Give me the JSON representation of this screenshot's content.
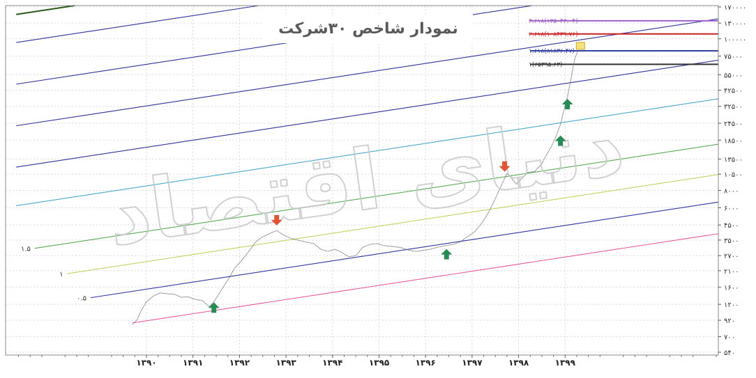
{
  "chart_data": {
    "type": "line",
    "title": "نمودار شاخص ۳۰شرکت",
    "watermark": "دنیای اقتصاد",
    "x_axis": {
      "ticks": [
        "۱۳۹۰",
        "۱۳۹۱",
        "۱۳۹۲",
        "۱۳۹۳",
        "۱۳۹۴",
        "۱۳۹۵",
        "۱۳۹۶",
        "۱۳۹۷",
        "۱۳۹۸",
        "۱۳۹۹"
      ]
    },
    "y_axis": {
      "scale": "log",
      "ticks": [
        {
          "label": "۱۷۰۰۰۰",
          "value": 170000
        },
        {
          "label": "۱۳۰۰۰۰",
          "value": 130000
        },
        {
          "label": "۱۰۰۰۰۰",
          "value": 100000
        },
        {
          "label": "۷۵۰۰۰",
          "value": 75000
        },
        {
          "label": "۵۵۰۰۰",
          "value": 55000
        },
        {
          "label": "۴۲۵۰۰",
          "value": 42500
        },
        {
          "label": "۳۲۵۰۰",
          "value": 32500
        },
        {
          "label": "۲۴۵۰۰",
          "value": 24500
        },
        {
          "label": "۱۸۵۰۰",
          "value": 18500
        },
        {
          "label": "۱۳۵۰۰",
          "value": 13500
        },
        {
          "label": "۱۰۵۰۰",
          "value": 10500
        },
        {
          "label": "۸۰۰۰",
          "value": 8000
        },
        {
          "label": "۶۰۰۰",
          "value": 6000
        },
        {
          "label": "۴۵۰۰",
          "value": 4500
        },
        {
          "label": "۳۵۰۰",
          "value": 3500
        },
        {
          "label": "۲۷۰۰",
          "value": 2700
        },
        {
          "label": "۲۱۰۰",
          "value": 2100
        },
        {
          "label": "۱۶۰۰",
          "value": 1600
        },
        {
          "label": "۱۲۰۰",
          "value": 1200
        },
        {
          "label": "۹۲۰",
          "value": 920
        },
        {
          "label": "۷۰۰",
          "value": 700
        },
        {
          "label": "۵۴۰",
          "value": 540
        }
      ]
    },
    "series": [
      {
        "color": "#6a6a6a",
        "points": [
          [
            1389.7,
            860
          ],
          [
            1389.8,
            930
          ],
          [
            1389.9,
            1100
          ],
          [
            1390.0,
            1250
          ],
          [
            1390.15,
            1380
          ],
          [
            1390.3,
            1450
          ],
          [
            1390.45,
            1430
          ],
          [
            1390.6,
            1420
          ],
          [
            1390.75,
            1350
          ],
          [
            1390.9,
            1360
          ],
          [
            1391.05,
            1300
          ],
          [
            1391.2,
            1280
          ],
          [
            1391.35,
            1150
          ],
          [
            1391.45,
            1250
          ],
          [
            1391.6,
            1500
          ],
          [
            1391.75,
            1800
          ],
          [
            1391.9,
            2200
          ],
          [
            1392.05,
            2500
          ],
          [
            1392.2,
            2900
          ],
          [
            1392.35,
            3400
          ],
          [
            1392.5,
            3700
          ],
          [
            1392.65,
            3900
          ],
          [
            1392.8,
            4100
          ],
          [
            1392.95,
            3800
          ],
          [
            1393.1,
            3600
          ],
          [
            1393.25,
            3500
          ],
          [
            1393.4,
            3400
          ],
          [
            1393.6,
            3300
          ],
          [
            1393.75,
            3000
          ],
          [
            1393.9,
            2900
          ],
          [
            1394.05,
            3000
          ],
          [
            1394.2,
            2850
          ],
          [
            1394.35,
            2650
          ],
          [
            1394.5,
            2700
          ],
          [
            1394.65,
            3100
          ],
          [
            1394.8,
            3250
          ],
          [
            1394.95,
            3300
          ],
          [
            1395.1,
            3200
          ],
          [
            1395.25,
            3150
          ],
          [
            1395.45,
            3100
          ],
          [
            1395.65,
            2950
          ],
          [
            1395.8,
            2900
          ],
          [
            1395.95,
            2950
          ],
          [
            1396.1,
            3000
          ],
          [
            1396.25,
            3100
          ],
          [
            1396.45,
            3200
          ],
          [
            1396.6,
            3250
          ],
          [
            1396.75,
            3400
          ],
          [
            1396.9,
            3700
          ],
          [
            1397.05,
            4000
          ],
          [
            1397.2,
            4600
          ],
          [
            1397.35,
            5500
          ],
          [
            1397.5,
            7000
          ],
          [
            1397.65,
            9000
          ],
          [
            1397.75,
            10600
          ],
          [
            1397.85,
            9800
          ],
          [
            1397.95,
            8900
          ],
          [
            1398.05,
            9600
          ],
          [
            1398.2,
            10800
          ],
          [
            1398.35,
            11000
          ],
          [
            1398.5,
            12500
          ],
          [
            1398.6,
            14500
          ],
          [
            1398.7,
            16500
          ],
          [
            1398.8,
            19500
          ],
          [
            1398.9,
            24000
          ],
          [
            1398.97,
            30000
          ],
          [
            1399.05,
            38000
          ],
          [
            1399.12,
            50000
          ],
          [
            1399.2,
            70000
          ],
          [
            1399.27,
            82000
          ]
        ]
      }
    ],
    "channels": [
      {
        "label": "",
        "color": "#e8559a",
        "start": [
          1389.7,
          880
        ],
        "slope": 0.118
      },
      {
        "label": "۰.۵",
        "color": "#2f35a0",
        "start": [
          1388.8,
          1340
        ],
        "slope": 0.118
      },
      {
        "label": "۱",
        "color": "#c9d060",
        "start": [
          1388.3,
          2000
        ],
        "slope": 0.118
      },
      {
        "label": "۱.۵",
        "color": "#5aaa55",
        "start": [
          1387.6,
          3050
        ],
        "slope": 0.118
      },
      {
        "label": "",
        "color": "#4aa8c8",
        "start": [
          1387.2,
          6200
        ],
        "slope": 0.118
      },
      {
        "label": "",
        "color": "#30309a",
        "start": [
          1387.2,
          11800
        ],
        "slope": 0.118
      },
      {
        "label": "",
        "color": "#30309a",
        "start": [
          1387.2,
          23500
        ],
        "slope": 0.118
      },
      {
        "label": "",
        "color": "#30309a",
        "start": [
          1387.2,
          47000
        ],
        "slope": 0.118
      },
      {
        "label": "",
        "color": "#30309a",
        "start": [
          1387.2,
          94000
        ],
        "slope": 0.118
      },
      {
        "label": "",
        "color": "#2a5a1a",
        "start": [
          1387.2,
          150000
        ],
        "slope": 0.118
      }
    ],
    "fib_levels": [
      {
        "label": "۳.۶۱۸(۱۳۵۰۴۳.۰۴)",
        "value": 135043,
        "color": "#a060c8"
      },
      {
        "label": "۲.۶۱۸(۱۰۸۴۳۹.۷۶)",
        "value": 108439,
        "color": "#cc2020"
      },
      {
        "label": "۱.۶۱۸(۸۱۸۳۶.۴۷)",
        "value": 81836,
        "color": "#3040a0"
      },
      {
        "label": "۱(۶۵۳۹۵.۶۳)",
        "value": 65395,
        "color": "#303030"
      }
    ],
    "arrows": [
      {
        "direction": "up",
        "color": "#2a8a55",
        "x": 1391.45,
        "value": 1130
      },
      {
        "direction": "down",
        "color": "#e05535",
        "x": 1392.8,
        "value": 4900
      },
      {
        "direction": "up",
        "color": "#2a8a55",
        "x": 1396.45,
        "value": 2750
      },
      {
        "direction": "down",
        "color": "#e05535",
        "x": 1397.7,
        "value": 12000
      },
      {
        "direction": "up",
        "color": "#2a8a55",
        "x": 1398.9,
        "value": 18200
      },
      {
        "direction": "up",
        "color": "#2a8a55",
        "x": 1399.05,
        "value": 33500
      }
    ],
    "marker_color": "#f4e27a",
    "grid": true
  }
}
